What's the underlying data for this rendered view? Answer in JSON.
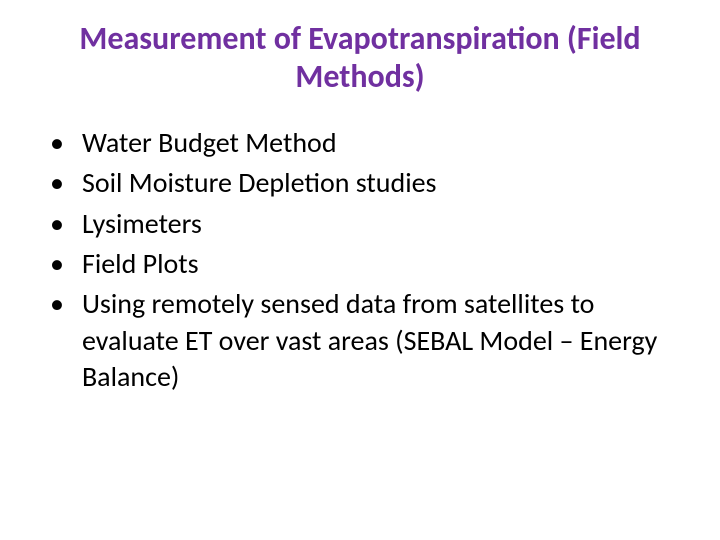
{
  "title": "Measurement of Evapotranspiration (Field Methods)",
  "bullets": {
    "b0": "Water Budget Method",
    "b1": "Soil Moisture Depletion studies",
    "b2": "Lysimeters",
    "b3": "Field Plots",
    "b4": "Using remotely sensed data from satellites to evaluate ET over vast areas (SEBAL Model – Energy Balance)"
  },
  "styling": {
    "title_color": "#7030a0",
    "title_fontsize": 32,
    "title_fontweight": "bold",
    "body_color": "#000000",
    "body_fontsize": 28,
    "background_color": "#ffffff",
    "bullet_char": "•",
    "font_family": "Calibri"
  }
}
